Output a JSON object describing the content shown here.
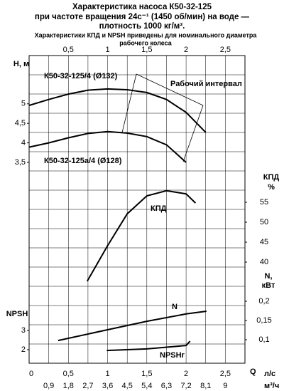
{
  "chart_data": {
    "type": "line",
    "title": [
      "Характеристика насоса К50-32-125",
      "при частоте вращения 24с⁻¹ (1450 об/мин) на воде —",
      "плотность 1000 кг/м³."
    ],
    "subtitle": [
      "Характеристики КПД и NPSH приведены для номинального диаметра",
      "рабочего колеса"
    ],
    "x_label": "Q",
    "x_unit": "л/с",
    "x2_unit": "м³/ч",
    "xlim": [
      0,
      2.75
    ],
    "xticks": [
      0,
      {
        "value": 0.5,
        "label": "0,5"
      },
      1,
      {
        "value": 1.5,
        "label": "1,5"
      },
      2,
      {
        "value": 2.5,
        "label": "2,5"
      }
    ],
    "x2lim": [
      0,
      9.9
    ],
    "x2ticks": [
      {
        "value": 0.9,
        "label": "0,9"
      },
      {
        "value": 1.8,
        "label": "1,8"
      },
      {
        "value": 2.7,
        "label": "2,7"
      },
      {
        "value": 3.6,
        "label": "3,6"
      },
      {
        "value": 4.5,
        "label": "4,5"
      },
      {
        "value": 5.4,
        "label": "5,4"
      },
      {
        "value": 6.3,
        "label": "6,3"
      },
      {
        "value": 7.2,
        "label": "7,2"
      },
      {
        "value": 8.1,
        "label": "8,1"
      },
      9
    ],
    "annotation": "Рабочий интервал",
    "color": "#000000",
    "panels": [
      {
        "axis_label": [
          "H, м"
        ],
        "axis_side": "left",
        "ylim": [
          3.5,
          6.2
        ],
        "yticks": [
          {
            "value": 3.5,
            "label": "3,5"
          },
          4,
          {
            "value": 4.5,
            "label": "4,5"
          },
          5
        ],
        "series": [
          {
            "name": "К50-32-125/4 (Ø132)",
            "x": [
              0,
              0.25,
              0.5,
              0.75,
              1,
              1.25,
              1.5,
              1.75,
              2,
              2.25
            ],
            "values": [
              4.96,
              5.11,
              5.25,
              5.35,
              5.38,
              5.36,
              5.29,
              5.11,
              4.78,
              4.27
            ]
          },
          {
            "name": "К50-32-125а/4 (Ø128)",
            "x": [
              0,
              0.25,
              0.5,
              0.75,
              1,
              1.25,
              1.5,
              1.75,
              2
            ],
            "values": [
              3.89,
              4.0,
              4.13,
              4.24,
              4.29,
              4.25,
              4.16,
              3.95,
              3.5
            ]
          }
        ]
      },
      {
        "axis_label": [
          "КПД",
          "%"
        ],
        "axis_side": "right",
        "ylim": [
          35,
          60
        ],
        "yticks": [
          40,
          45,
          50,
          55
        ],
        "series": [
          {
            "name": "КПД",
            "x": [
              0.74,
              1,
              1.25,
              1.5,
              1.75,
              2,
              2.12
            ],
            "values": [
              35.2,
              44.1,
              52.1,
              56.6,
              57.9,
              57.1,
              54.8
            ]
          }
        ]
      },
      {
        "axis_label": [
          "N,",
          "кВт"
        ],
        "axis_side": "right",
        "ylim": [
          0.05,
          0.2
        ],
        "yticks": [
          {
            "value": 0.1,
            "label": "0,1"
          },
          {
            "value": 0.15,
            "label": "0,15"
          },
          {
            "value": 0.2,
            "label": "0,2"
          }
        ],
        "series": [
          {
            "name": "N",
            "x": [
              0.37,
              1,
              1.5,
              2,
              2.26
            ],
            "values": [
              0.098,
              0.126,
              0.148,
              0.167,
              0.174
            ]
          }
        ]
      },
      {
        "axis_label": [
          "NPSH"
        ],
        "axis_side": "left",
        "ylim": [
          1.5,
          3.5
        ],
        "yticks": [
          2,
          3
        ],
        "series": [
          {
            "name": "NPSHr",
            "x": [
              0.99,
              1.5,
              2,
              2.05
            ],
            "values": [
              1.96,
              2.04,
              2.22,
              2.44
            ]
          }
        ]
      }
    ]
  }
}
